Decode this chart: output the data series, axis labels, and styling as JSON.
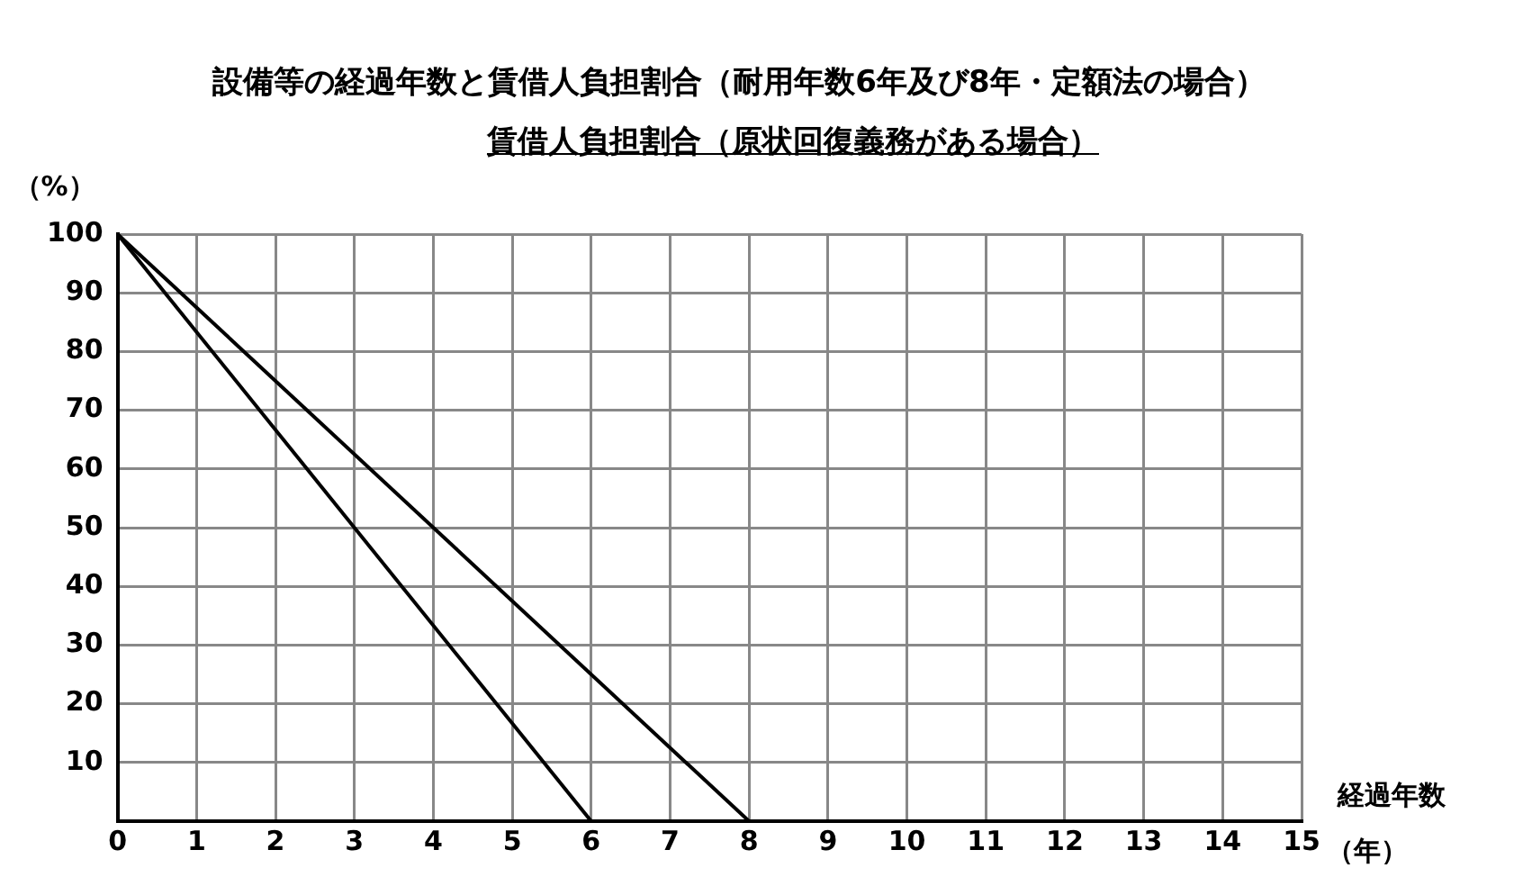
{
  "chart_data": {
    "type": "line",
    "title": "設備等の経過年数と賃借人負担割合（耐用年数6年及び8年・定額法の場合）",
    "subtitle": "賃借人負担割合（原状回復義務がある場合）",
    "ylabel": "（%）",
    "xlabel": "経過年数",
    "annotations": [
      "（年）"
    ],
    "series": [
      {
        "color": "#000000",
        "x": [
          0,
          6
        ],
        "values": [
          100,
          0
        ]
      },
      {
        "color": "#000000",
        "x": [
          0,
          8
        ],
        "values": [
          100,
          0
        ]
      }
    ],
    "xlim": [
      0,
      15
    ],
    "xticks": [
      0,
      1,
      2,
      3,
      4,
      5,
      6,
      7,
      8,
      9,
      10,
      11,
      12,
      13,
      14,
      15
    ],
    "ylim": [
      0,
      100
    ],
    "yticks": [
      {
        "value": 0,
        "label": null
      },
      10,
      20,
      30,
      40,
      50,
      60,
      70,
      80,
      90,
      100
    ],
    "grid": true,
    "legend": false,
    "marker": "none",
    "line_style": "solid"
  }
}
